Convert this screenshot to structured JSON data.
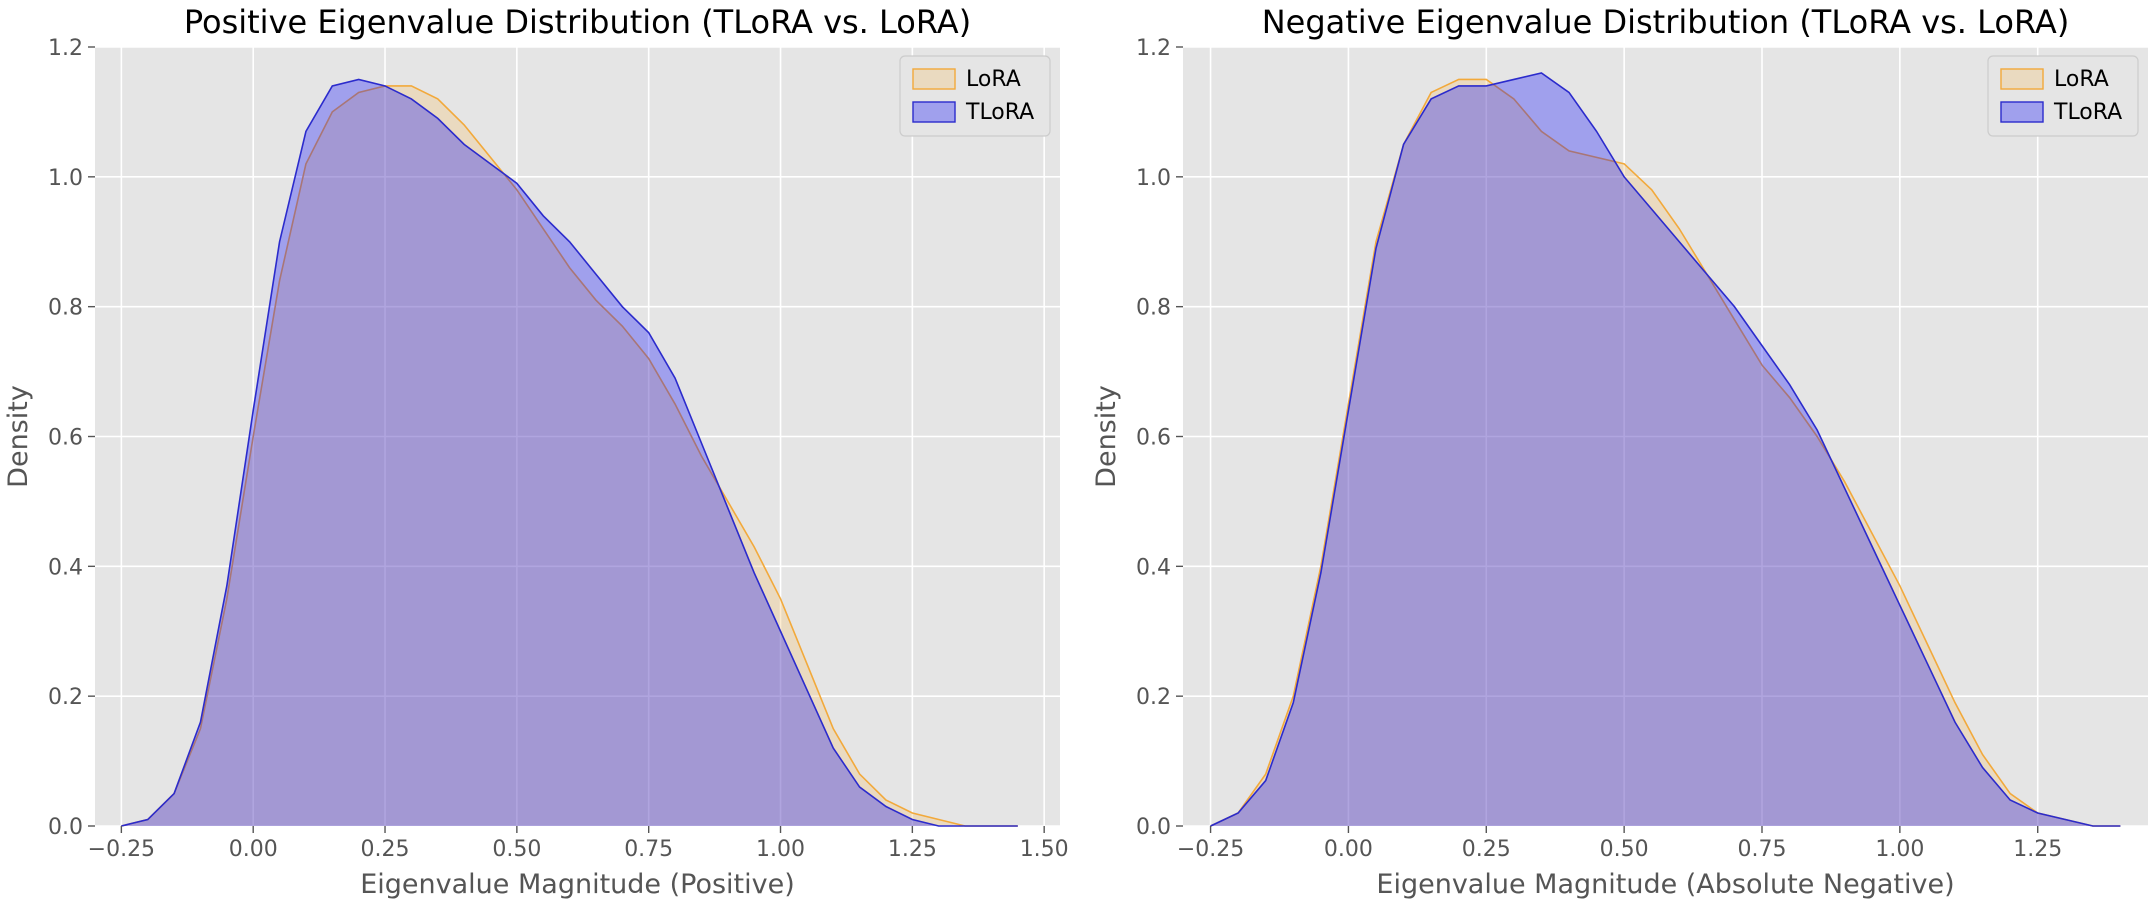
{
  "chart_data": [
    {
      "type": "area",
      "title": "Positive Eigenvalue Distribution (TLoRA vs. LoRA)",
      "xlabel": "Eigenvalue Magnitude (Positive)",
      "ylabel": "Density",
      "xlim": [
        -0.3,
        1.53
      ],
      "ylim": [
        0,
        1.2
      ],
      "xticks": [
        -0.25,
        0.0,
        0.25,
        0.5,
        0.75,
        1.0,
        1.25,
        1.5
      ],
      "xtick_labels": [
        "−0.25",
        "0.00",
        "0.25",
        "0.50",
        "0.75",
        "1.00",
        "1.25",
        "1.50"
      ],
      "yticks": [
        0.0,
        0.2,
        0.4,
        0.6,
        0.8,
        1.0,
        1.2
      ],
      "ytick_labels": [
        "0.0",
        "0.2",
        "0.4",
        "0.6",
        "0.8",
        "1.0",
        "1.2"
      ],
      "grid": true,
      "legend_position": "top-right",
      "series": [
        {
          "name": "LoRA",
          "fill": "#f5c06a",
          "stroke": "#f2a93b",
          "x": [
            -0.25,
            -0.2,
            -0.15,
            -0.1,
            -0.05,
            0.0,
            0.05,
            0.1,
            0.15,
            0.2,
            0.25,
            0.3,
            0.35,
            0.4,
            0.45,
            0.5,
            0.55,
            0.6,
            0.65,
            0.7,
            0.75,
            0.8,
            0.85,
            0.9,
            0.95,
            1.0,
            1.05,
            1.1,
            1.15,
            1.2,
            1.25,
            1.3,
            1.35,
            1.4,
            1.45
          ],
          "y": [
            0.0,
            0.01,
            0.05,
            0.15,
            0.35,
            0.6,
            0.84,
            1.02,
            1.1,
            1.13,
            1.14,
            1.14,
            1.12,
            1.08,
            1.03,
            0.98,
            0.92,
            0.86,
            0.81,
            0.77,
            0.72,
            0.65,
            0.57,
            0.5,
            0.43,
            0.35,
            0.25,
            0.15,
            0.08,
            0.04,
            0.02,
            0.01,
            0.0,
            0.0,
            0.0
          ]
        },
        {
          "name": "TLoRA",
          "fill": "#0000ff",
          "stroke": "#2b2bcc",
          "x": [
            -0.25,
            -0.2,
            -0.15,
            -0.1,
            -0.05,
            0.0,
            0.05,
            0.1,
            0.15,
            0.2,
            0.25,
            0.3,
            0.35,
            0.4,
            0.45,
            0.5,
            0.55,
            0.6,
            0.65,
            0.7,
            0.75,
            0.8,
            0.85,
            0.9,
            0.95,
            1.0,
            1.05,
            1.1,
            1.15,
            1.2,
            1.25,
            1.3,
            1.35,
            1.4,
            1.45
          ],
          "y": [
            0.0,
            0.01,
            0.05,
            0.16,
            0.37,
            0.64,
            0.9,
            1.07,
            1.14,
            1.15,
            1.14,
            1.12,
            1.09,
            1.05,
            1.02,
            0.99,
            0.94,
            0.9,
            0.85,
            0.8,
            0.76,
            0.69,
            0.59,
            0.49,
            0.39,
            0.3,
            0.21,
            0.12,
            0.06,
            0.03,
            0.01,
            0.0,
            0.0,
            0.0,
            0.0
          ]
        }
      ]
    },
    {
      "type": "area",
      "title": "Negative Eigenvalue Distribution (TLoRA vs. LoRA)",
      "xlabel": "Eigenvalue Magnitude (Absolute Negative)",
      "ylabel": "Density",
      "xlim": [
        -0.3,
        1.45
      ],
      "ylim": [
        0,
        1.2
      ],
      "xticks": [
        -0.25,
        0.0,
        0.25,
        0.5,
        0.75,
        1.0,
        1.25
      ],
      "xtick_labels": [
        "−0.25",
        "0.00",
        "0.25",
        "0.50",
        "0.75",
        "1.00",
        "1.25"
      ],
      "yticks": [
        0.0,
        0.2,
        0.4,
        0.6,
        0.8,
        1.0,
        1.2
      ],
      "ytick_labels": [
        "0.0",
        "0.2",
        "0.4",
        "0.6",
        "0.8",
        "1.0",
        "1.2"
      ],
      "grid": true,
      "legend_position": "top-right",
      "series": [
        {
          "name": "LoRA",
          "fill": "#f5c06a",
          "stroke": "#f2a93b",
          "x": [
            -0.25,
            -0.2,
            -0.15,
            -0.1,
            -0.05,
            0.0,
            0.05,
            0.1,
            0.15,
            0.2,
            0.25,
            0.3,
            0.35,
            0.4,
            0.45,
            0.5,
            0.55,
            0.6,
            0.65,
            0.7,
            0.75,
            0.8,
            0.85,
            0.9,
            0.95,
            1.0,
            1.05,
            1.1,
            1.15,
            1.2,
            1.25,
            1.3,
            1.35,
            1.4
          ],
          "y": [
            0.0,
            0.02,
            0.08,
            0.2,
            0.4,
            0.65,
            0.9,
            1.05,
            1.13,
            1.15,
            1.15,
            1.12,
            1.07,
            1.04,
            1.03,
            1.02,
            0.98,
            0.92,
            0.85,
            0.78,
            0.71,
            0.66,
            0.6,
            0.53,
            0.45,
            0.37,
            0.28,
            0.19,
            0.11,
            0.05,
            0.02,
            0.01,
            0.0,
            0.0
          ]
        },
        {
          "name": "TLoRA",
          "fill": "#0000ff",
          "stroke": "#2b2bcc",
          "x": [
            -0.25,
            -0.2,
            -0.15,
            -0.1,
            -0.05,
            0.0,
            0.05,
            0.1,
            0.15,
            0.2,
            0.25,
            0.3,
            0.35,
            0.4,
            0.45,
            0.5,
            0.55,
            0.6,
            0.65,
            0.7,
            0.75,
            0.8,
            0.85,
            0.9,
            0.95,
            1.0,
            1.05,
            1.1,
            1.15,
            1.2,
            1.25,
            1.3,
            1.35,
            1.4
          ],
          "y": [
            0.0,
            0.02,
            0.07,
            0.19,
            0.39,
            0.64,
            0.89,
            1.05,
            1.12,
            1.14,
            1.14,
            1.15,
            1.16,
            1.13,
            1.07,
            1.0,
            0.95,
            0.9,
            0.85,
            0.8,
            0.74,
            0.68,
            0.61,
            0.52,
            0.43,
            0.34,
            0.25,
            0.16,
            0.09,
            0.04,
            0.02,
            0.01,
            0.0,
            0.0
          ]
        }
      ]
    }
  ]
}
